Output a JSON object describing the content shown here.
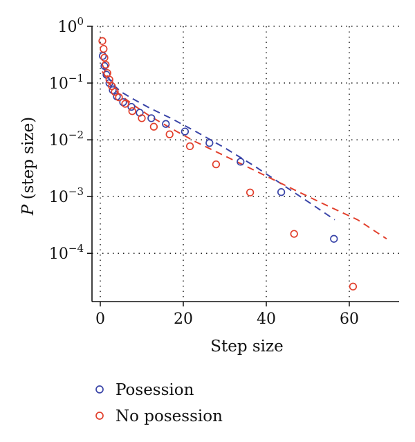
{
  "chart_data": {
    "type": "scatter",
    "title": "",
    "xlabel": "Step size",
    "ylabel": {
      "italic": "P",
      "rest": " (step size)"
    },
    "xlim": [
      -2,
      72
    ],
    "ylim_log10": [
      -4.85,
      0
    ],
    "y_scale": "log",
    "x_ticks": [
      0,
      20,
      40,
      60
    ],
    "y_ticks": [
      {
        "value": 1,
        "base": "10",
        "exp": "0"
      },
      {
        "value": 0.1,
        "base": "10",
        "exp": "−1"
      },
      {
        "value": 0.01,
        "base": "10",
        "exp": "−2"
      },
      {
        "value": 0.001,
        "base": "10",
        "exp": "−3"
      },
      {
        "value": 0.0001,
        "base": "10",
        "exp": "−4"
      }
    ],
    "grid": true,
    "legend_position": "below",
    "series": [
      {
        "name": "Posession",
        "color": "#3a45a8",
        "marker": "open-circle",
        "points": [
          [
            0.6,
            0.3
          ],
          [
            1.0,
            0.2
          ],
          [
            1.5,
            0.14
          ],
          [
            2.2,
            0.1
          ],
          [
            3.0,
            0.075
          ],
          [
            4.0,
            0.058
          ],
          [
            5.5,
            0.046
          ],
          [
            7.5,
            0.038
          ],
          [
            9.5,
            0.03
          ],
          [
            12.3,
            0.024
          ],
          [
            15.8,
            0.019
          ],
          [
            20.4,
            0.014
          ],
          [
            26.3,
            0.0088
          ],
          [
            33.8,
            0.0041
          ],
          [
            43.6,
            0.0012
          ],
          [
            56.3,
            0.00018
          ]
        ],
        "fit": [
          [
            0.5,
            0.21
          ],
          [
            1.5,
            0.14
          ],
          [
            3,
            0.095
          ],
          [
            5,
            0.07
          ],
          [
            8,
            0.052
          ],
          [
            12,
            0.036
          ],
          [
            17,
            0.024
          ],
          [
            23,
            0.014
          ],
          [
            30,
            0.0072
          ],
          [
            37,
            0.0035
          ],
          [
            44,
            0.0016
          ],
          [
            51,
            0.00073
          ],
          [
            56.5,
            0.00039
          ]
        ]
      },
      {
        "name": "No posession",
        "color": "#e2402d",
        "marker": "open-circle",
        "points": [
          [
            0.5,
            0.55
          ],
          [
            0.8,
            0.4
          ],
          [
            1.0,
            0.28
          ],
          [
            1.3,
            0.21
          ],
          [
            1.7,
            0.15
          ],
          [
            2.2,
            0.115
          ],
          [
            2.8,
            0.088
          ],
          [
            3.5,
            0.07
          ],
          [
            4.5,
            0.056
          ],
          [
            6.0,
            0.043
          ],
          [
            7.7,
            0.032
          ],
          [
            10.0,
            0.024
          ],
          [
            12.9,
            0.017
          ],
          [
            16.7,
            0.0125
          ],
          [
            21.6,
            0.0077
          ],
          [
            27.9,
            0.0037
          ],
          [
            36.1,
            0.00118
          ],
          [
            46.7,
            0.00022
          ],
          [
            60.9,
            2.6e-05
          ]
        ],
        "fit": [
          [
            0.5,
            0.16
          ],
          [
            1.5,
            0.115
          ],
          [
            3,
            0.082
          ],
          [
            5,
            0.06
          ],
          [
            8,
            0.041
          ],
          [
            12,
            0.026
          ],
          [
            17,
            0.016
          ],
          [
            23,
            0.0092
          ],
          [
            30,
            0.0052
          ],
          [
            38,
            0.0027
          ],
          [
            46,
            0.0014
          ],
          [
            54,
            0.00073
          ],
          [
            62,
            0.00039
          ],
          [
            69,
            0.00018
          ]
        ]
      }
    ]
  }
}
